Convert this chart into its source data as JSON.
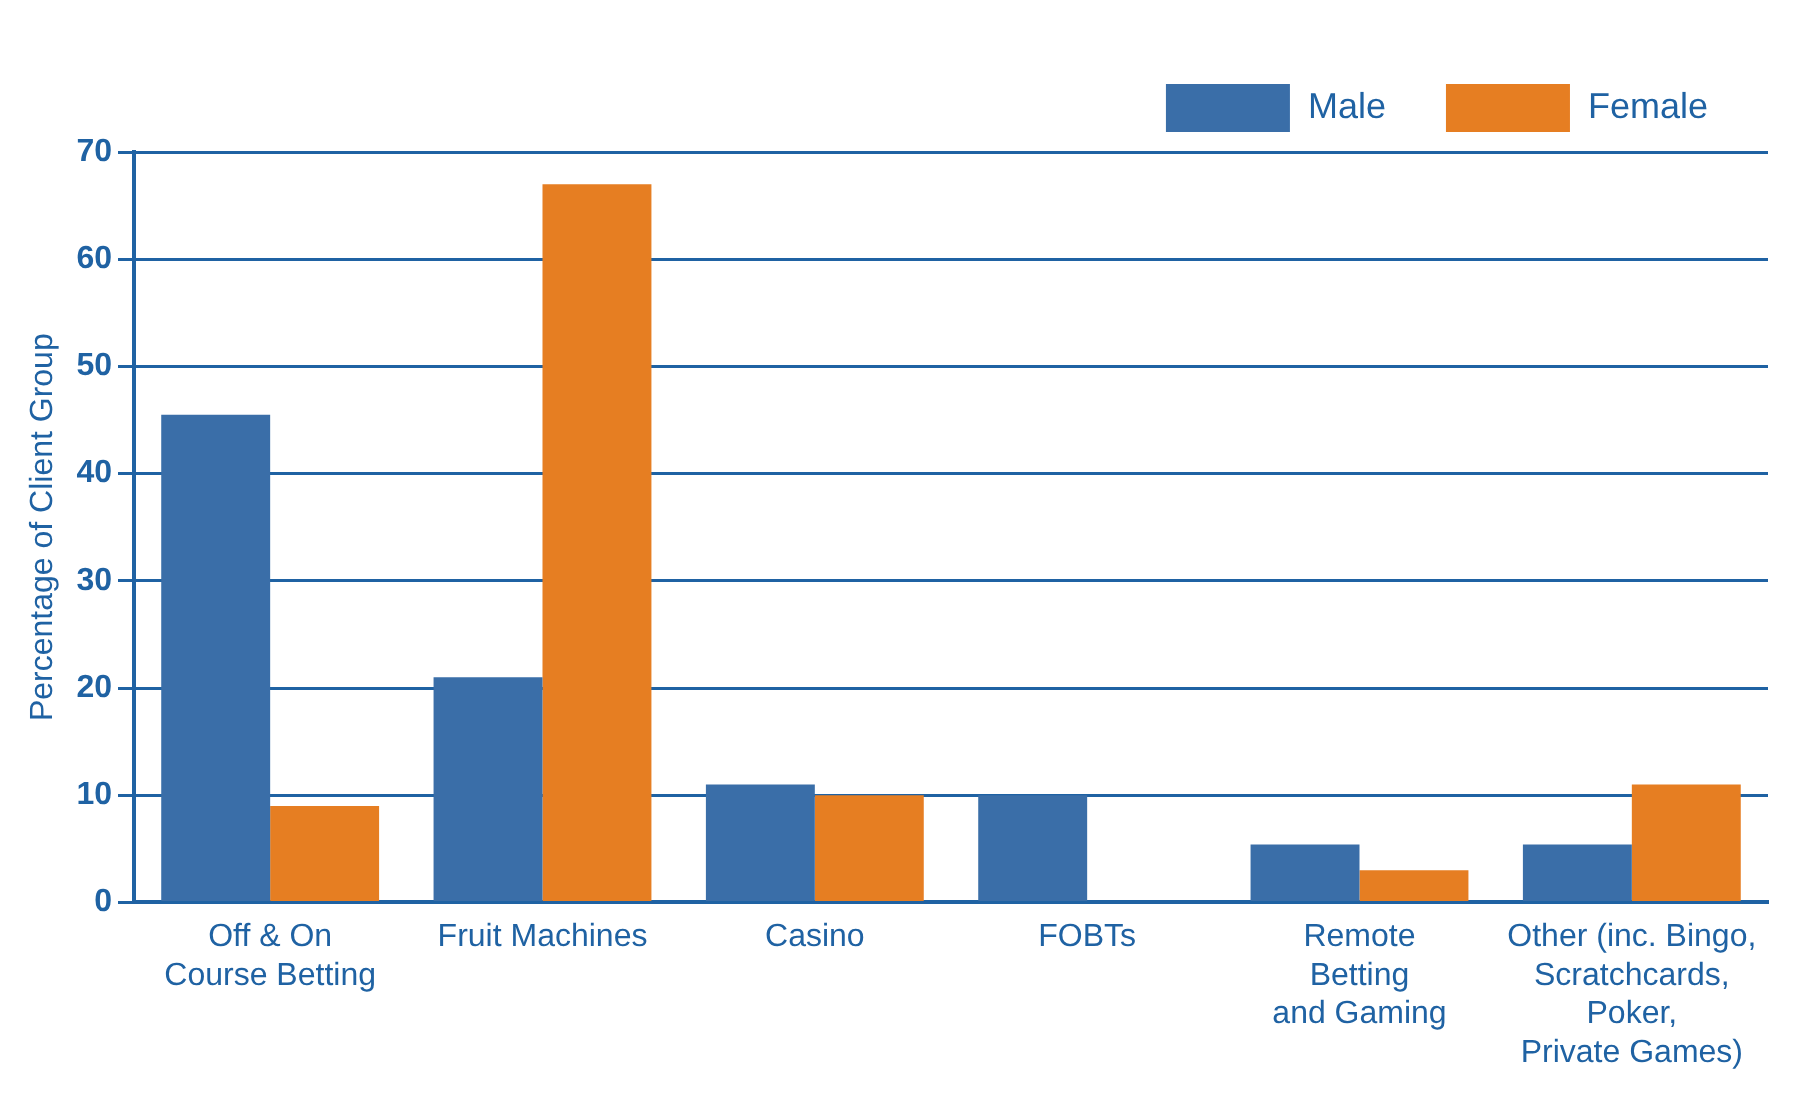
{
  "chart_data": {
    "type": "bar",
    "ylabel": "Percentage of Client Group",
    "categories": [
      "Off & On\nCourse Betting",
      "Fruit Machines",
      "Casino",
      "FOBTs",
      "Remote\nBetting\nand Gaming",
      "Other (inc. Bingo,\nScratchcards,\nPoker,\nPrivate Games)"
    ],
    "series": [
      {
        "name": "Male",
        "color": "#3a6ea8",
        "values": [
          45.5,
          21,
          11,
          10,
          5.4,
          5.4
        ]
      },
      {
        "name": "Female",
        "color": "#e67e22",
        "values": [
          9,
          67,
          10,
          null,
          3,
          11
        ]
      }
    ],
    "ylim": [
      0,
      70
    ],
    "yticks": [
      0,
      10,
      20,
      30,
      40,
      50,
      60,
      70
    ],
    "grid": "y",
    "legend": "top right"
  }
}
